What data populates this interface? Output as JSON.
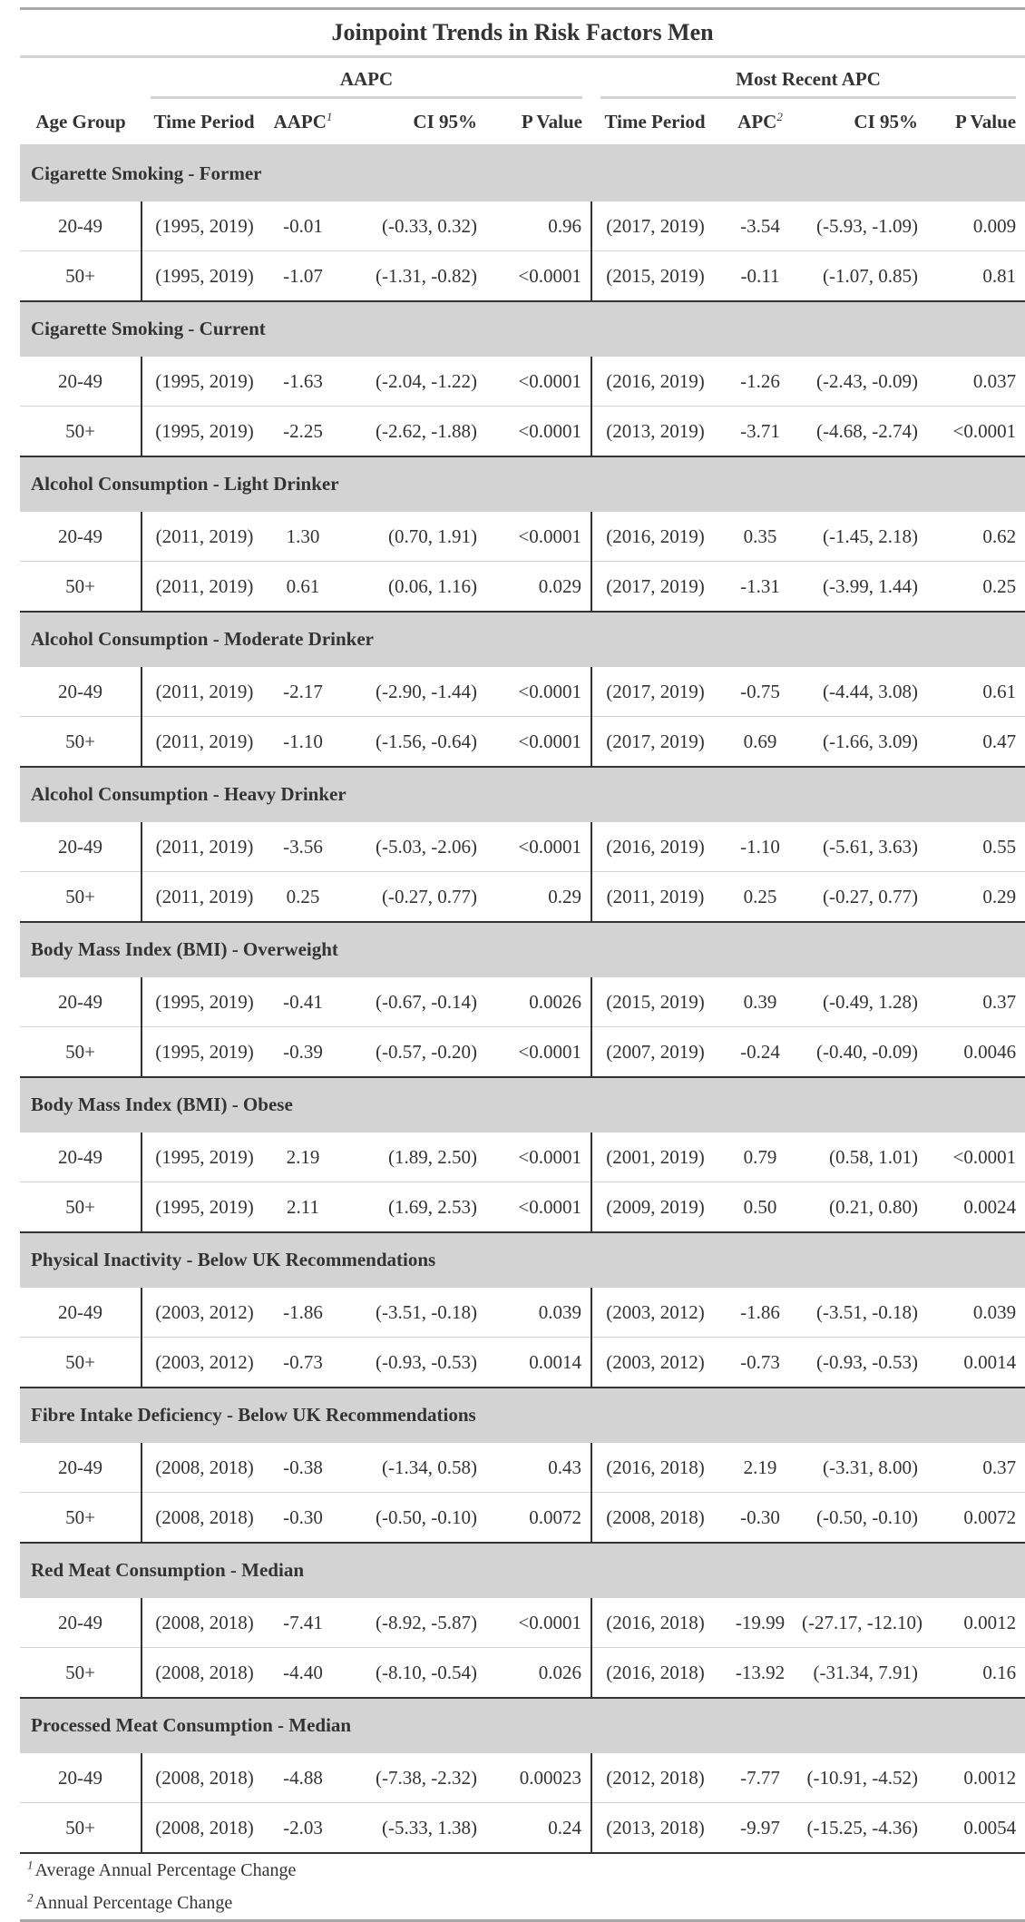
{
  "title": "Joinpoint Trends in Risk Factors Men",
  "spanners": {
    "aapc": "AAPC",
    "recent": "Most Recent APC"
  },
  "columns": {
    "age_group": "Age Group",
    "aapc_period": "Time Period",
    "aapc": "AAPC",
    "aapc_sup": "1",
    "aapc_ci": "CI 95%",
    "aapc_p": "P Value",
    "apc_period": "Time Period",
    "apc": "APC",
    "apc_sup": "2",
    "apc_ci": "CI 95%",
    "apc_p": "P Value"
  },
  "groups": [
    {
      "label": "Cigarette Smoking - Former",
      "rows": [
        [
          "20-49",
          "(1995, 2019)",
          "-0.01",
          "(-0.33, 0.32)",
          "0.96",
          "(2017, 2019)",
          "-3.54",
          "(-5.93, -1.09)",
          "0.009"
        ],
        [
          "50+",
          "(1995, 2019)",
          "-1.07",
          "(-1.31, -0.82)",
          "<0.0001",
          "(2015, 2019)",
          "-0.11",
          "(-1.07, 0.85)",
          "0.81"
        ]
      ]
    },
    {
      "label": "Cigarette Smoking - Current",
      "rows": [
        [
          "20-49",
          "(1995, 2019)",
          "-1.63",
          "(-2.04, -1.22)",
          "<0.0001",
          "(2016, 2019)",
          "-1.26",
          "(-2.43, -0.09)",
          "0.037"
        ],
        [
          "50+",
          "(1995, 2019)",
          "-2.25",
          "(-2.62, -1.88)",
          "<0.0001",
          "(2013, 2019)",
          "-3.71",
          "(-4.68, -2.74)",
          "<0.0001"
        ]
      ]
    },
    {
      "label": "Alcohol Consumption - Light Drinker",
      "rows": [
        [
          "20-49",
          "(2011, 2019)",
          "1.30",
          "(0.70, 1.91)",
          "<0.0001",
          "(2016, 2019)",
          "0.35",
          "(-1.45, 2.18)",
          "0.62"
        ],
        [
          "50+",
          "(2011, 2019)",
          "0.61",
          "(0.06, 1.16)",
          "0.029",
          "(2017, 2019)",
          "-1.31",
          "(-3.99, 1.44)",
          "0.25"
        ]
      ]
    },
    {
      "label": "Alcohol Consumption - Moderate Drinker",
      "rows": [
        [
          "20-49",
          "(2011, 2019)",
          "-2.17",
          "(-2.90, -1.44)",
          "<0.0001",
          "(2017, 2019)",
          "-0.75",
          "(-4.44, 3.08)",
          "0.61"
        ],
        [
          "50+",
          "(2011, 2019)",
          "-1.10",
          "(-1.56, -0.64)",
          "<0.0001",
          "(2017, 2019)",
          "0.69",
          "(-1.66, 3.09)",
          "0.47"
        ]
      ]
    },
    {
      "label": "Alcohol Consumption - Heavy Drinker",
      "rows": [
        [
          "20-49",
          "(2011, 2019)",
          "-3.56",
          "(-5.03, -2.06)",
          "<0.0001",
          "(2016, 2019)",
          "-1.10",
          "(-5.61, 3.63)",
          "0.55"
        ],
        [
          "50+",
          "(2011, 2019)",
          "0.25",
          "(-0.27, 0.77)",
          "0.29",
          "(2011, 2019)",
          "0.25",
          "(-0.27, 0.77)",
          "0.29"
        ]
      ]
    },
    {
      "label": "Body Mass Index (BMI) - Overweight",
      "rows": [
        [
          "20-49",
          "(1995, 2019)",
          "-0.41",
          "(-0.67, -0.14)",
          "0.0026",
          "(2015, 2019)",
          "0.39",
          "(-0.49, 1.28)",
          "0.37"
        ],
        [
          "50+",
          "(1995, 2019)",
          "-0.39",
          "(-0.57, -0.20)",
          "<0.0001",
          "(2007, 2019)",
          "-0.24",
          "(-0.40, -0.09)",
          "0.0046"
        ]
      ]
    },
    {
      "label": "Body Mass Index (BMI) - Obese",
      "rows": [
        [
          "20-49",
          "(1995, 2019)",
          "2.19",
          "(1.89, 2.50)",
          "<0.0001",
          "(2001, 2019)",
          "0.79",
          "(0.58, 1.01)",
          "<0.0001"
        ],
        [
          "50+",
          "(1995, 2019)",
          "2.11",
          "(1.69, 2.53)",
          "<0.0001",
          "(2009, 2019)",
          "0.50",
          "(0.21, 0.80)",
          "0.0024"
        ]
      ]
    },
    {
      "label": "Physical Inactivity - Below UK Recommendations",
      "rows": [
        [
          "20-49",
          "(2003, 2012)",
          "-1.86",
          "(-3.51, -0.18)",
          "0.039",
          "(2003, 2012)",
          "-1.86",
          "(-3.51, -0.18)",
          "0.039"
        ],
        [
          "50+",
          "(2003, 2012)",
          "-0.73",
          "(-0.93, -0.53)",
          "0.0014",
          "(2003, 2012)",
          "-0.73",
          "(-0.93, -0.53)",
          "0.0014"
        ]
      ]
    },
    {
      "label": "Fibre Intake Deficiency - Below UK Recommendations",
      "rows": [
        [
          "20-49",
          "(2008, 2018)",
          "-0.38",
          "(-1.34, 0.58)",
          "0.43",
          "(2016, 2018)",
          "2.19",
          "(-3.31, 8.00)",
          "0.37"
        ],
        [
          "50+",
          "(2008, 2018)",
          "-0.30",
          "(-0.50, -0.10)",
          "0.0072",
          "(2008, 2018)",
          "-0.30",
          "(-0.50, -0.10)",
          "0.0072"
        ]
      ]
    },
    {
      "label": "Red Meat Consumption - Median",
      "rows": [
        [
          "20-49",
          "(2008, 2018)",
          "-7.41",
          "(-8.92, -5.87)",
          "<0.0001",
          "(2016, 2018)",
          "-19.99",
          "(-27.17, -12.10)",
          "0.0012"
        ],
        [
          "50+",
          "(2008, 2018)",
          "-4.40",
          "(-8.10, -0.54)",
          "0.026",
          "(2016, 2018)",
          "-13.92",
          "(-31.34, 7.91)",
          "0.16"
        ]
      ]
    },
    {
      "label": "Processed Meat Consumption - Median",
      "rows": [
        [
          "20-49",
          "(2008, 2018)",
          "-4.88",
          "(-7.38, -2.32)",
          "0.00023",
          "(2012, 2018)",
          "-7.77",
          "(-10.91, -4.52)",
          "0.0012"
        ],
        [
          "50+",
          "(2008, 2018)",
          "-2.03",
          "(-5.33, 1.38)",
          "0.24",
          "(2013, 2018)",
          "-9.97",
          "(-15.25, -4.36)",
          "0.0054"
        ]
      ]
    }
  ],
  "footnotes": [
    {
      "mark": "1",
      "text": "Average Annual Percentage Change"
    },
    {
      "mark": "2",
      "text": "Annual Percentage Change"
    }
  ]
}
